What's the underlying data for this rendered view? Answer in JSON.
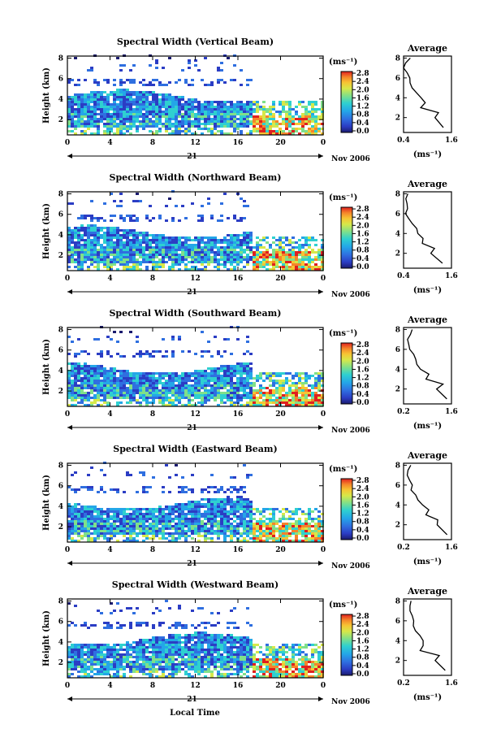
{
  "figure": {
    "date_label": "Nov 2006",
    "day_label": "21",
    "xlabel": "Local Time",
    "colorbar_unit": "(ms⁻¹)",
    "avg_title": "Average",
    "avg_unit": "(ms⁻¹)",
    "colorbar_ticks": [
      "0.0",
      "0.4",
      "0.8",
      "1.2",
      "1.6",
      "2.0",
      "2.4",
      "2.8"
    ],
    "colorbar_colors": [
      "#1b1b6e",
      "#2b3dc4",
      "#2f6fe0",
      "#24a6e8",
      "#2fd0d0",
      "#7fe08a",
      "#d6e84a",
      "#f7c433",
      "#f5842a",
      "#e0201f"
    ]
  },
  "chart_data": [
    {
      "type": "heatmap",
      "title": "Spectral Width (Vertical Beam)",
      "ylabel": "Height (km)",
      "x_ticks": [
        "0",
        "4",
        "8",
        "12",
        "16",
        "20",
        "0"
      ],
      "y_ticks": [
        "2",
        "4",
        "6",
        "8"
      ],
      "xlim": [
        0,
        24
      ],
      "ylim": [
        0.5,
        8.2
      ],
      "avg_profile": {
        "x_ticks": [
          "0.4",
          "1.6"
        ],
        "xlim": [
          0.4,
          1.8
        ],
        "heights": [
          1,
          2,
          2.5,
          3,
          3.5,
          4,
          4.5,
          5,
          5.5,
          6,
          6.5,
          7,
          7.5,
          8
        ],
        "values": [
          1.6,
          1.3,
          1.4,
          0.9,
          1.0,
          0.9,
          0.8,
          0.7,
          0.6,
          0.55,
          0.5,
          0.45,
          0.5,
          0.55
        ]
      }
    },
    {
      "type": "heatmap",
      "title": "Spectral Width (Northward Beam)",
      "ylabel": "Height (km)",
      "x_ticks": [
        "0",
        "4",
        "8",
        "12",
        "16",
        "20",
        "0"
      ],
      "y_ticks": [
        "2",
        "4",
        "6",
        "8"
      ],
      "xlim": [
        0,
        24
      ],
      "ylim": [
        0.5,
        8.2
      ],
      "avg_profile": {
        "x_ticks": [
          "0.4",
          "1.6"
        ],
        "xlim": [
          0.4,
          1.8
        ],
        "heights": [
          1,
          2,
          2.5,
          3,
          3.5,
          4,
          4.5,
          5,
          5.5,
          6,
          6.5,
          7,
          7.5,
          8
        ],
        "values": [
          1.5,
          1.2,
          1.3,
          0.9,
          0.95,
          0.85,
          0.75,
          0.65,
          0.55,
          0.5,
          0.5,
          0.45,
          0.5,
          0.55
        ]
      }
    },
    {
      "type": "heatmap",
      "title": "Spectral Width (Southward Beam)",
      "ylabel": "Height (km)",
      "x_ticks": [
        "0",
        "4",
        "8",
        "12",
        "16",
        "20",
        "0"
      ],
      "y_ticks": [
        "2",
        "4",
        "6",
        "8"
      ],
      "xlim": [
        0,
        24
      ],
      "ylim": [
        0.5,
        8.2
      ],
      "avg_profile": {
        "x_ticks": [
          "0.2",
          "1.6"
        ],
        "xlim": [
          0.2,
          1.8
        ],
        "heights": [
          1,
          2,
          2.5,
          3,
          3.5,
          4,
          4.5,
          5,
          5.5,
          6,
          6.5,
          7,
          7.5,
          8
        ],
        "values": [
          1.6,
          1.3,
          1.5,
          0.9,
          1.0,
          0.8,
          0.7,
          0.6,
          0.5,
          0.45,
          0.4,
          0.35,
          0.4,
          0.45
        ]
      }
    },
    {
      "type": "heatmap",
      "title": "Spectral Width (Eastward Beam)",
      "ylabel": "Height (km)",
      "x_ticks": [
        "0",
        "4",
        "8",
        "12",
        "16",
        "20",
        "0"
      ],
      "y_ticks": [
        "2",
        "4",
        "6",
        "8"
      ],
      "xlim": [
        0,
        24
      ],
      "ylim": [
        0.5,
        8.2
      ],
      "avg_profile": {
        "x_ticks": [
          "0.2",
          "1.6"
        ],
        "xlim": [
          0.2,
          1.8
        ],
        "heights": [
          1,
          2,
          2.5,
          3,
          3.5,
          4,
          4.5,
          5,
          5.5,
          6,
          6.5,
          7,
          7.5,
          8
        ],
        "values": [
          1.6,
          1.3,
          1.4,
          0.9,
          1.0,
          0.8,
          0.7,
          0.6,
          0.5,
          0.45,
          0.4,
          0.35,
          0.4,
          0.45
        ]
      }
    },
    {
      "type": "heatmap",
      "title": "Spectral Width (Westward Beam)",
      "ylabel": "Height (km)",
      "x_ticks": [
        "0",
        "4",
        "8",
        "12",
        "16",
        "20",
        "0"
      ],
      "y_ticks": [
        "2",
        "4",
        "6",
        "8"
      ],
      "xlim": [
        0,
        24
      ],
      "ylim": [
        0.5,
        8.2
      ],
      "avg_profile": {
        "x_ticks": [
          "0.2",
          "1.6"
        ],
        "xlim": [
          0.2,
          1.8
        ],
        "heights": [
          1,
          2,
          2.5,
          3,
          3.5,
          4,
          4.5,
          5,
          5.5,
          6,
          6.5,
          7,
          7.5,
          8
        ],
        "values": [
          1.6,
          1.2,
          1.4,
          0.8,
          0.9,
          0.8,
          0.7,
          0.6,
          0.55,
          0.5,
          0.45,
          0.4,
          0.45,
          0.5
        ]
      }
    }
  ]
}
